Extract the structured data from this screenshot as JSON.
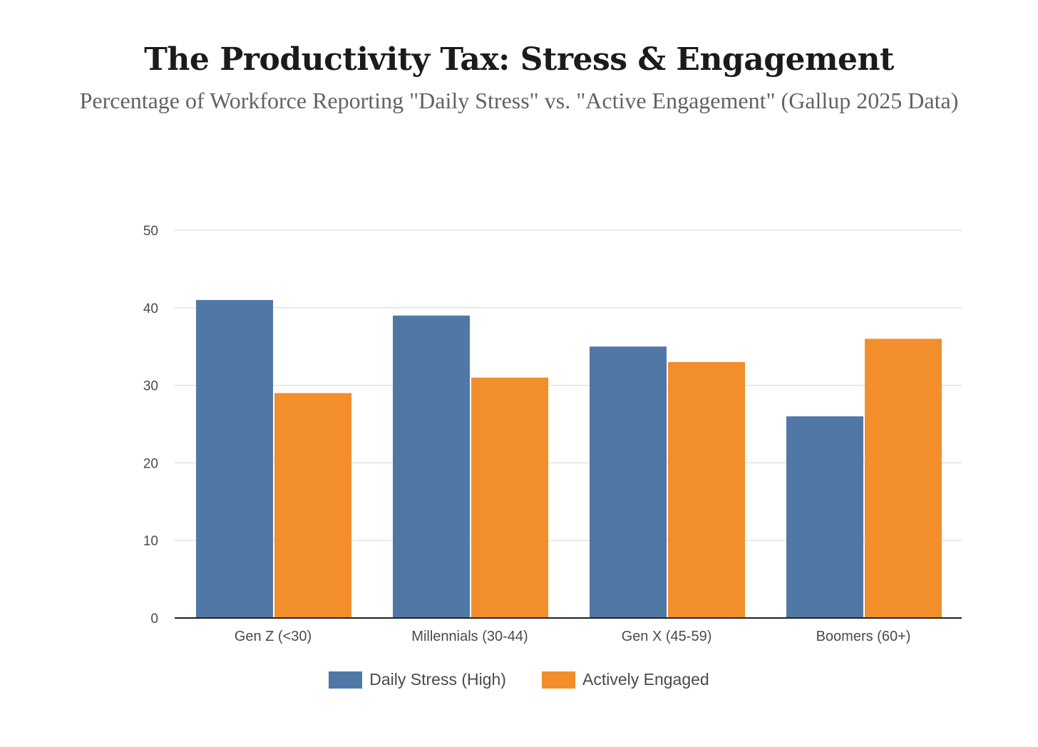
{
  "chart_data": {
    "type": "bar",
    "title": "The Productivity Tax: Stress & Engagement",
    "subtitle": "Percentage of Workforce Reporting \"Daily Stress\" vs. \"Active Engagement\" (Gallup 2025 Data)",
    "categories": [
      "Gen Z (<30)",
      "Millennials (30-44)",
      "Gen X (45-59)",
      "Boomers (60+)"
    ],
    "series": [
      {
        "name": "Daily Stress (High)",
        "color": "#4f78a6",
        "values": [
          41,
          39,
          35,
          26
        ]
      },
      {
        "name": "Actively Engaged",
        "color": "#f28e2c",
        "values": [
          29,
          31,
          33,
          36
        ]
      }
    ],
    "yticks": [
      "0",
      "10",
      "20",
      "30",
      "40",
      "50"
    ],
    "ylim": [
      0,
      50
    ],
    "xlabel": "",
    "ylabel": "",
    "grid": true,
    "legend": "bottom-center"
  }
}
